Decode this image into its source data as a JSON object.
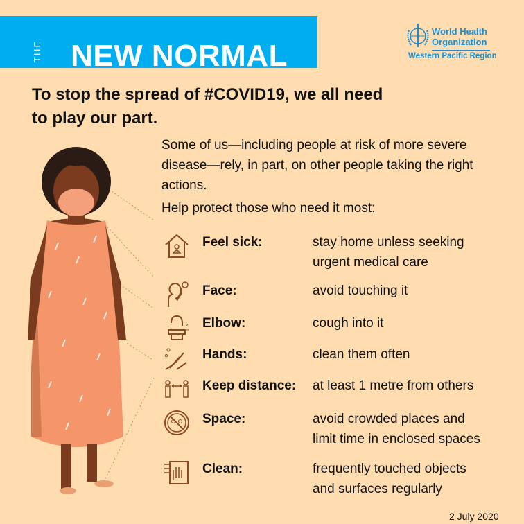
{
  "banner": {
    "the": "THE",
    "title": "NEW NORMAL",
    "color": "#00AEEF"
  },
  "logo": {
    "line1": "World Health",
    "line2": "Organization",
    "line3": "Western Pacific Region"
  },
  "headline": {
    "line1": "To stop the spread of #COVID19, we all need",
    "line2": "to play our part."
  },
  "intro": "Some of us—including people at risk of more severe disease—rely, in part, on other people taking the right actions.",
  "help": "Help protect those who need it most:",
  "items": [
    {
      "icon": "house-person-icon",
      "label": "Feel sick:",
      "value1": "stay home unless seeking",
      "value2": "urgent medical care"
    },
    {
      "icon": "face-touch-icon",
      "label": "Face:",
      "value1": "avoid touching it",
      "value2": ""
    },
    {
      "icon": "cough-elbow-icon",
      "label": "Elbow:",
      "value1": "cough into it",
      "value2": ""
    },
    {
      "icon": "hand-wash-icon",
      "label": "Hands:",
      "value1": "clean them often",
      "value2": ""
    },
    {
      "icon": "distance-icon",
      "label": "Keep distance:",
      "value1": "at least 1 metre from others",
      "value2": ""
    },
    {
      "icon": "no-crowd-icon",
      "label": "Space:",
      "value1": "avoid crowded places and",
      "value2": "limit time in enclosed spaces"
    },
    {
      "icon": "clean-surface-icon",
      "label": "Clean:",
      "value1": "frequently touched objects",
      "value2": "and surfaces regularly"
    }
  ],
  "date": "2 July 2020",
  "colors": {
    "background": "#FFDDB0",
    "icon": "#8B4A1F",
    "dress": "#F4956A",
    "skin": "#7A3B1E"
  }
}
